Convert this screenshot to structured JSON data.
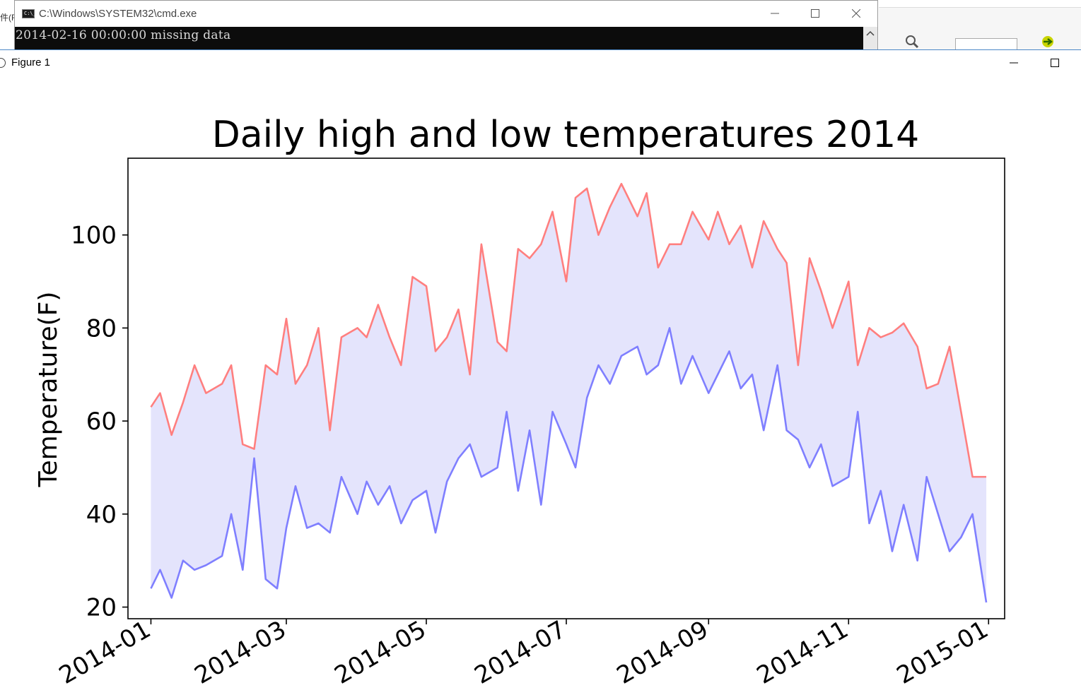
{
  "background_app": {
    "menu_fragment": "件(F)"
  },
  "cmd_window": {
    "title": "C:\\Windows\\SYSTEM32\\cmd.exe",
    "console_lines": [
      "2014-02-16 00:00:00 missing data"
    ],
    "icon": "console-icon"
  },
  "figure_window": {
    "title": "Figure 1",
    "icon": "matplotlib-icon"
  },
  "colors": {
    "high": "#ff7f7f",
    "low": "#7f7fff",
    "fill": "#e4e4fc"
  },
  "chart_data": {
    "type": "line",
    "title": "Daily high and low temperatures 2014",
    "ylabel": "Temperature(F)",
    "xlabel": "",
    "x_ticks": [
      "2014-01",
      "2014-03",
      "2014-05",
      "2014-07",
      "2014-09",
      "2014-11",
      "2015-01"
    ],
    "y_ticks": [
      20,
      40,
      60,
      80,
      100
    ],
    "ylim": [
      17.5,
      116.5
    ],
    "xlim": [
      "2013-12-22",
      "2015-01-08"
    ],
    "fill_between": true,
    "grid": false,
    "start_date": "2014-01-01",
    "end_date": "2014-12-31",
    "series": [
      {
        "name": "high",
        "sampled_dates": [
          "2014-01-01",
          "2014-01-05",
          "2014-01-10",
          "2014-01-15",
          "2014-01-20",
          "2014-01-25",
          "2014-02-01",
          "2014-02-05",
          "2014-02-10",
          "2014-02-15",
          "2014-02-20",
          "2014-02-25",
          "2014-03-01",
          "2014-03-05",
          "2014-03-10",
          "2014-03-15",
          "2014-03-20",
          "2014-03-25",
          "2014-04-01",
          "2014-04-05",
          "2014-04-10",
          "2014-04-15",
          "2014-04-20",
          "2014-04-25",
          "2014-05-01",
          "2014-05-05",
          "2014-05-10",
          "2014-05-15",
          "2014-05-20",
          "2014-05-25",
          "2014-06-01",
          "2014-06-05",
          "2014-06-10",
          "2014-06-15",
          "2014-06-20",
          "2014-06-25",
          "2014-07-01",
          "2014-07-05",
          "2014-07-10",
          "2014-07-15",
          "2014-07-20",
          "2014-07-25",
          "2014-08-01",
          "2014-08-05",
          "2014-08-10",
          "2014-08-15",
          "2014-08-20",
          "2014-08-25",
          "2014-09-01",
          "2014-09-05",
          "2014-09-10",
          "2014-09-15",
          "2014-09-20",
          "2014-09-25",
          "2014-10-01",
          "2014-10-05",
          "2014-10-10",
          "2014-10-15",
          "2014-10-20",
          "2014-10-25",
          "2014-11-01",
          "2014-11-05",
          "2014-11-10",
          "2014-11-15",
          "2014-11-20",
          "2014-11-25",
          "2014-12-01",
          "2014-12-05",
          "2014-12-10",
          "2014-12-15",
          "2014-12-20",
          "2014-12-25",
          "2014-12-31"
        ],
        "values": [
          63,
          66,
          57,
          64,
          72,
          66,
          68,
          72,
          55,
          54,
          72,
          70,
          82,
          68,
          72,
          80,
          58,
          78,
          80,
          78,
          85,
          78,
          72,
          91,
          89,
          75,
          78,
          84,
          70,
          98,
          77,
          75,
          97,
          95,
          98,
          105,
          90,
          108,
          110,
          100,
          106,
          111,
          104,
          109,
          93,
          98,
          98,
          105,
          99,
          105,
          98,
          102,
          93,
          103,
          97,
          94,
          72,
          95,
          88,
          80,
          90,
          72,
          80,
          78,
          79,
          81,
          76,
          67,
          68,
          76,
          62,
          48,
          48
        ]
      },
      {
        "name": "low",
        "sampled_dates": [
          "2014-01-01",
          "2014-01-05",
          "2014-01-10",
          "2014-01-15",
          "2014-01-20",
          "2014-01-25",
          "2014-02-01",
          "2014-02-05",
          "2014-02-10",
          "2014-02-15",
          "2014-02-20",
          "2014-02-25",
          "2014-03-01",
          "2014-03-05",
          "2014-03-10",
          "2014-03-15",
          "2014-03-20",
          "2014-03-25",
          "2014-04-01",
          "2014-04-05",
          "2014-04-10",
          "2014-04-15",
          "2014-04-20",
          "2014-04-25",
          "2014-05-01",
          "2014-05-05",
          "2014-05-10",
          "2014-05-15",
          "2014-05-20",
          "2014-05-25",
          "2014-06-01",
          "2014-06-05",
          "2014-06-10",
          "2014-06-15",
          "2014-06-20",
          "2014-06-25",
          "2014-07-01",
          "2014-07-05",
          "2014-07-10",
          "2014-07-15",
          "2014-07-20",
          "2014-07-25",
          "2014-08-01",
          "2014-08-05",
          "2014-08-10",
          "2014-08-15",
          "2014-08-20",
          "2014-08-25",
          "2014-09-01",
          "2014-09-05",
          "2014-09-10",
          "2014-09-15",
          "2014-09-20",
          "2014-09-25",
          "2014-10-01",
          "2014-10-05",
          "2014-10-10",
          "2014-10-15",
          "2014-10-20",
          "2014-10-25",
          "2014-11-01",
          "2014-11-05",
          "2014-11-10",
          "2014-11-15",
          "2014-11-20",
          "2014-11-25",
          "2014-12-01",
          "2014-12-05",
          "2014-12-10",
          "2014-12-15",
          "2014-12-20",
          "2014-12-25",
          "2014-12-31"
        ],
        "values": [
          24,
          28,
          22,
          30,
          28,
          29,
          31,
          40,
          28,
          52,
          26,
          24,
          37,
          46,
          37,
          38,
          36,
          48,
          40,
          47,
          42,
          46,
          38,
          43,
          45,
          36,
          47,
          52,
          55,
          48,
          50,
          62,
          45,
          58,
          42,
          62,
          55,
          50,
          65,
          72,
          68,
          74,
          76,
          70,
          72,
          80,
          68,
          74,
          66,
          70,
          75,
          67,
          70,
          58,
          72,
          58,
          56,
          50,
          55,
          46,
          48,
          62,
          38,
          45,
          32,
          42,
          30,
          48,
          40,
          32,
          35,
          40,
          21
        ]
      }
    ]
  }
}
